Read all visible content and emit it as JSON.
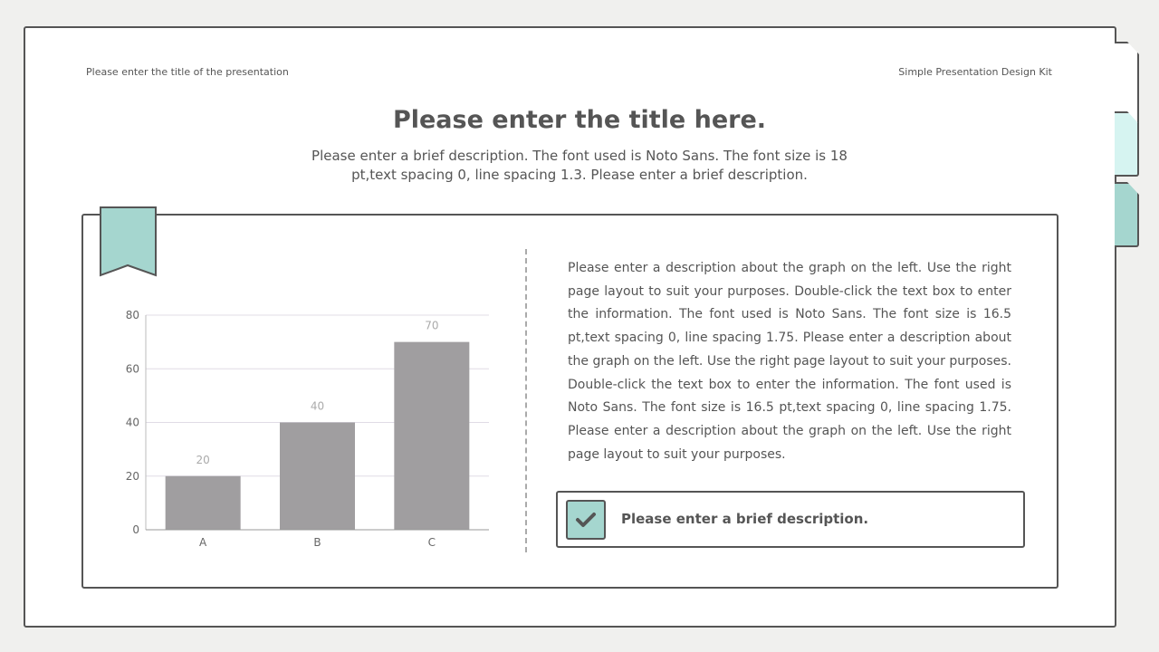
{
  "header": {
    "left": "Please enter the title of the presentation",
    "right": "Simple Presentation Design Kit"
  },
  "title": "Please enter the title here.",
  "subtitle": "Please enter a brief description. The font used is Noto Sans. The font size is 18 pt,text spacing 0, line spacing 1.3. Please enter a brief description.",
  "description": "Please enter a description about the graph on the left. Use the right page layout to suit your purposes. Double-click the text box to enter the information. The font used is Noto Sans. The font size is 16.5 pt,text spacing 0, line spacing 1.75. Please enter a description about the graph on the left. Use the right page layout to suit your purposes. Double-click the text box to enter the information. The font used is Noto Sans. The font size is 16.5 pt,text spacing 0, line spacing 1.75. Please enter a description about the graph on the left. Use the right page layout to suit your purposes.",
  "note": {
    "text": "Please enter a brief description.",
    "icon": "check-icon"
  },
  "colors": {
    "accent": "#a5d6cf",
    "accent_light": "#d6f4f1",
    "bar": "#a09ea0",
    "outline": "#555555"
  },
  "chart_data": {
    "type": "bar",
    "categories": [
      "A",
      "B",
      "C"
    ],
    "values": [
      20,
      40,
      70
    ],
    "yticks": [
      0,
      20,
      40,
      60,
      80
    ],
    "ylim": [
      0,
      80
    ],
    "grid": true,
    "data_labels": true
  }
}
